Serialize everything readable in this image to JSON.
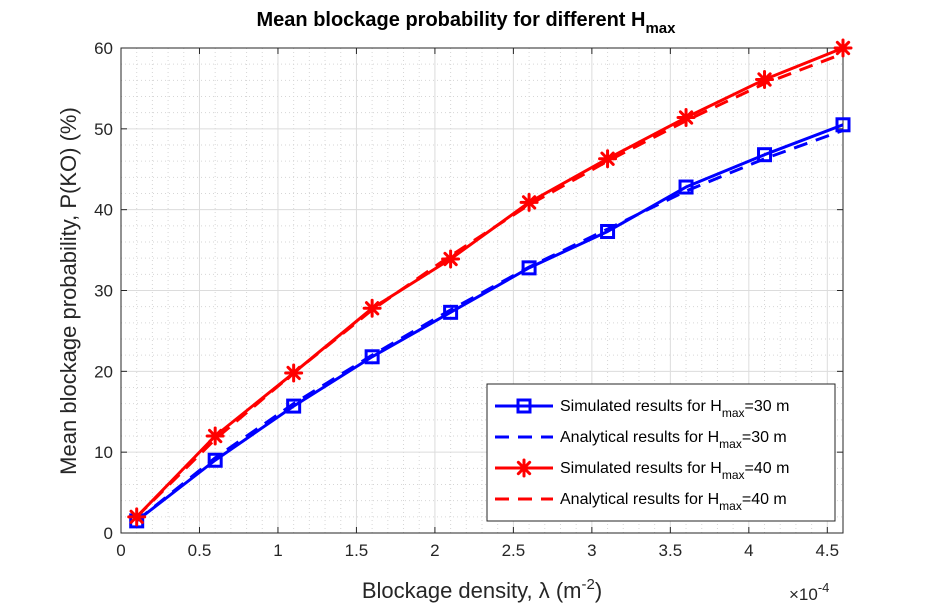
{
  "chart_data": {
    "type": "line",
    "title": "Mean blockage probability for different H",
    "title_sub": "max",
    "xlabel": "Blockage density, λ (m",
    "xlabel_sup": "-2",
    "xlabel_end": ")",
    "ylabel": "Mean blockage probability, P(KO) (%)",
    "x_exponent_base": "×10",
    "x_exponent_sup": "-4",
    "xlim": [
      0,
      4.6
    ],
    "ylim": [
      0,
      60
    ],
    "xticks": [
      0,
      0.5,
      1,
      1.5,
      2,
      2.5,
      3,
      3.5,
      4,
      4.5
    ],
    "xtick_labels": [
      "0",
      "0.5",
      "1",
      "1.5",
      "2",
      "2.5",
      "3",
      "3.5",
      "4",
      "4.5"
    ],
    "yticks": [
      0,
      10,
      20,
      30,
      40,
      50,
      60
    ],
    "ytick_labels": [
      "0",
      "10",
      "20",
      "30",
      "40",
      "50",
      "60"
    ],
    "grid": true,
    "minor_grid": true,
    "legend_position": "bottom-right",
    "x": [
      0.1,
      0.6,
      1.1,
      1.6,
      2.1,
      2.6,
      3.1,
      3.6,
      4.1,
      4.6
    ],
    "series": [
      {
        "name_pre": "Simulated results for H",
        "name_sub": "max",
        "name_post": "=30 m",
        "color": "#0000ff",
        "style": "solid",
        "marker": "square",
        "values": [
          1.5,
          9.0,
          15.7,
          21.8,
          27.3,
          32.8,
          37.3,
          42.8,
          46.8,
          50.5
        ]
      },
      {
        "name_pre": "Analytical results for H",
        "name_sub": "max",
        "name_post": "=30 m",
        "color": "#0000ff",
        "style": "dashed",
        "marker": "none",
        "values": [
          1.5,
          9.3,
          16.0,
          22.0,
          27.6,
          32.9,
          37.6,
          42.3,
          46.3,
          49.8
        ]
      },
      {
        "name_pre": "Simulated results for H",
        "name_sub": "max",
        "name_post": "=40 m",
        "color": "#ff0000",
        "style": "solid",
        "marker": "asterisk",
        "values": [
          2.0,
          12.0,
          19.8,
          27.8,
          33.9,
          40.9,
          46.3,
          51.4,
          56.1,
          60.0
        ]
      },
      {
        "name_pre": "Analytical results for H",
        "name_sub": "max",
        "name_post": "=40 m",
        "color": "#ff0000",
        "style": "dashed",
        "marker": "none",
        "values": [
          2.0,
          11.6,
          19.8,
          27.6,
          34.3,
          40.6,
          46.0,
          51.0,
          55.6,
          59.3
        ]
      }
    ]
  }
}
